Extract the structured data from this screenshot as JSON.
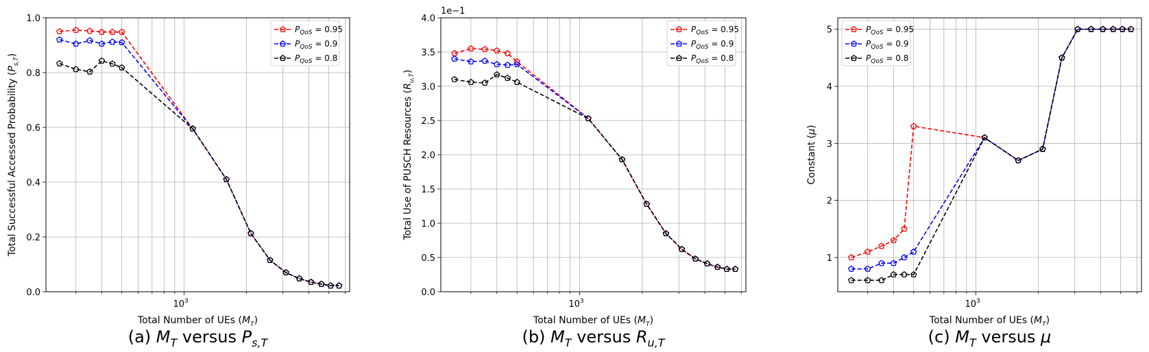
{
  "chart_data": [
    {
      "type": "line",
      "caption": {
        "prefix": "(a) ",
        "lhs": "M",
        "lhs_sub": "T",
        "mid": " versus ",
        "rhs": "P",
        "rhs_sub": "s,T"
      },
      "xlabel": {
        "text": "Total Number of UEs (",
        "var": "M",
        "sub": "T",
        "end": ")"
      },
      "ylabel": {
        "text": "Total Successful Accessed Probability (",
        "var": "P",
        "sub": "s,T",
        "end": ")"
      },
      "xscale": "log",
      "xlim": [
        215,
        6300
      ],
      "ylim": [
        0.0,
        1.0
      ],
      "yticks": [
        0.0,
        0.2,
        0.4,
        0.6,
        0.8,
        1.0
      ],
      "ytick_labels": [
        "0.0",
        "0.2",
        "0.4",
        "0.6",
        "0.8",
        "1.0"
      ],
      "xtick_major": {
        "value": 1000,
        "base": "10",
        "exp": "3"
      },
      "grid": true,
      "legend": "top-right",
      "x": [
        250,
        300,
        350,
        400,
        450,
        500,
        1100,
        1600,
        2100,
        2600,
        3100,
        3600,
        4100,
        4600,
        5100,
        5600
      ],
      "series": [
        {
          "name": {
            "var": "P",
            "sub": "QoS",
            "val": " = 0.95"
          },
          "color": "#ff0000",
          "values": [
            0.95,
            0.955,
            0.952,
            0.948,
            0.948,
            0.948,
            0.595,
            0.41,
            0.213,
            0.115,
            0.07,
            0.048,
            0.035,
            0.028,
            0.022,
            0.022
          ]
        },
        {
          "name": {
            "var": "P",
            "sub": "QoS",
            "val": " = 0.9"
          },
          "color": "#0000ff",
          "values": [
            0.92,
            0.905,
            0.917,
            0.905,
            0.912,
            0.91,
            0.595,
            0.41,
            0.213,
            0.115,
            0.07,
            0.048,
            0.035,
            0.028,
            0.022,
            0.022
          ]
        },
        {
          "name": {
            "var": "P",
            "sub": "QoS",
            "val": " = 0.8"
          },
          "color": "#000000",
          "values": [
            0.833,
            0.812,
            0.803,
            0.843,
            0.832,
            0.818,
            0.595,
            0.41,
            0.213,
            0.115,
            0.07,
            0.048,
            0.035,
            0.028,
            0.022,
            0.022
          ]
        }
      ]
    },
    {
      "type": "line",
      "caption": {
        "prefix": "(b) ",
        "lhs": "M",
        "lhs_sub": "T",
        "mid": " versus ",
        "rhs": "R",
        "rhs_sub": "u,T"
      },
      "xlabel": {
        "text": "Total Number of UEs (",
        "var": "M",
        "sub": "T",
        "end": ")"
      },
      "ylabel": {
        "text": "Total Use of PUSCH Resources (",
        "var": "R",
        "sub": "u,T",
        "end": ")"
      },
      "offset_text": "1e−1",
      "xscale": "log",
      "xlim": [
        215,
        6300
      ],
      "ylim": [
        0.0,
        4.0
      ],
      "yticks": [
        0.0,
        0.5,
        1.0,
        1.5,
        2.0,
        2.5,
        3.0,
        3.5,
        4.0
      ],
      "ytick_labels": [
        "0.0",
        "0.5",
        "1.0",
        "1.5",
        "2.0",
        "2.5",
        "3.0",
        "3.5",
        "4.0"
      ],
      "xtick_major": {
        "value": 1000,
        "base": "10",
        "exp": "3"
      },
      "grid": true,
      "legend": "top-right",
      "x": [
        250,
        300,
        350,
        400,
        450,
        500,
        1100,
        1600,
        2100,
        2600,
        3100,
        3600,
        4100,
        4600,
        5100,
        5600
      ],
      "series": [
        {
          "name": {
            "var": "P",
            "sub": "QoS",
            "val": " = 0.95"
          },
          "color": "#ff0000",
          "values": [
            3.48,
            3.55,
            3.54,
            3.52,
            3.48,
            3.36,
            2.53,
            1.93,
            1.28,
            0.85,
            0.62,
            0.48,
            0.41,
            0.36,
            0.33,
            0.33
          ]
        },
        {
          "name": {
            "var": "P",
            "sub": "QoS",
            "val": " = 0.9"
          },
          "color": "#0000ff",
          "values": [
            3.4,
            3.36,
            3.37,
            3.32,
            3.31,
            3.32,
            2.53,
            1.93,
            1.28,
            0.85,
            0.62,
            0.48,
            0.41,
            0.36,
            0.33,
            0.33
          ]
        },
        {
          "name": {
            "var": "P",
            "sub": "QoS",
            "val": " = 0.8"
          },
          "color": "#000000",
          "values": [
            3.1,
            3.06,
            3.05,
            3.17,
            3.12,
            3.06,
            2.53,
            1.93,
            1.28,
            0.85,
            0.62,
            0.48,
            0.41,
            0.36,
            0.33,
            0.33
          ]
        }
      ]
    },
    {
      "type": "line",
      "caption": {
        "prefix": "(c) ",
        "lhs": "M",
        "lhs_sub": "T",
        "mid": " versus ",
        "rhs": "μ",
        "rhs_sub": ""
      },
      "xlabel": {
        "text": "Total Number of UEs (",
        "var": "M",
        "sub": "T",
        "end": ")"
      },
      "ylabel": {
        "text": "Constant (",
        "var": "μ",
        "sub": "",
        "end": ")"
      },
      "xscale": "log",
      "xlim": [
        215,
        6300
      ],
      "ylim": [
        0.4,
        5.2
      ],
      "yticks": [
        1,
        2,
        3,
        4,
        5
      ],
      "ytick_labels": [
        "1",
        "2",
        "3",
        "4",
        "5"
      ],
      "xtick_major": {
        "value": 1000,
        "base": "10",
        "exp": "3"
      },
      "grid": true,
      "legend": "top-left",
      "x": [
        250,
        300,
        350,
        400,
        450,
        500,
        1100,
        1600,
        2100,
        2600,
        3100,
        3600,
        4100,
        4600,
        5100,
        5600
      ],
      "series": [
        {
          "name": {
            "var": "P",
            "sub": "QoS",
            "val": " = 0.95"
          },
          "color": "#ff0000",
          "values": [
            1.0,
            1.1,
            1.2,
            1.3,
            1.5,
            3.3,
            3.1,
            2.7,
            2.9,
            4.5,
            5.0,
            5.0,
            5.0,
            5.0,
            5.0,
            5.0
          ]
        },
        {
          "name": {
            "var": "P",
            "sub": "QoS",
            "val": " = 0.9"
          },
          "color": "#0000ff",
          "values": [
            0.8,
            0.8,
            0.9,
            0.9,
            1.0,
            1.1,
            3.1,
            2.7,
            2.9,
            4.5,
            5.0,
            5.0,
            5.0,
            5.0,
            5.0,
            5.0
          ]
        },
        {
          "name": {
            "var": "P",
            "sub": "QoS",
            "val": " = 0.8"
          },
          "color": "#000000",
          "values": [
            0.6,
            0.6,
            0.6,
            0.7,
            0.7,
            0.7,
            3.1,
            2.7,
            2.9,
            4.5,
            5.0,
            5.0,
            5.0,
            5.0,
            5.0,
            5.0
          ]
        }
      ]
    }
  ]
}
